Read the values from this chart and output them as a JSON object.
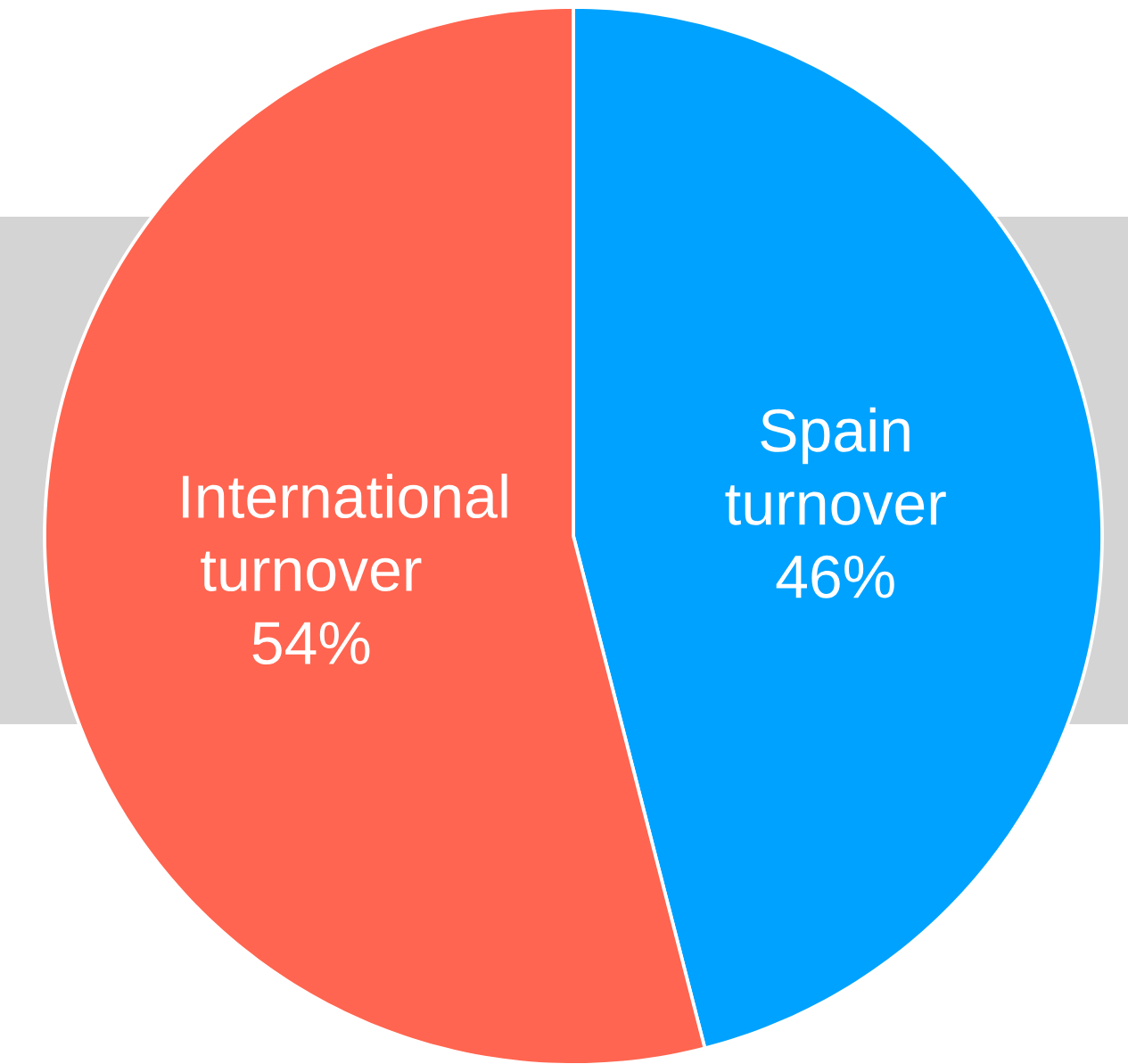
{
  "chart_data": {
    "type": "pie",
    "categories": [
      "Spain turnover",
      "International turnover"
    ],
    "values": [
      46,
      54
    ],
    "colors": [
      "#00a2ff",
      "#ff6550"
    ],
    "value_labels": [
      "46%",
      "54%"
    ]
  }
}
